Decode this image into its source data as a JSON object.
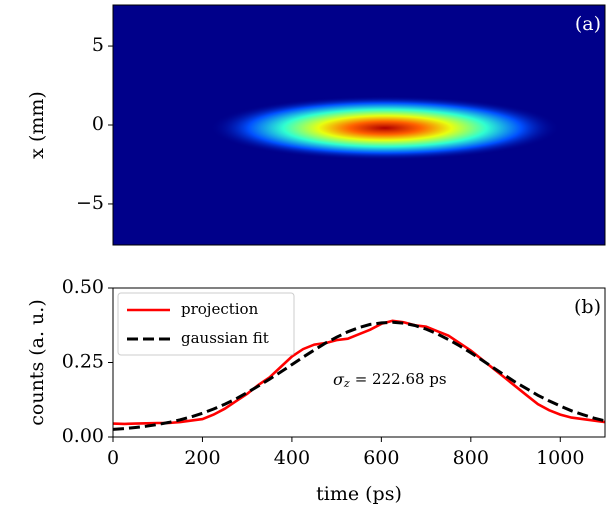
{
  "chart_data": [
    {
      "type": "heatmap",
      "ylabel": "x (mm)",
      "ylim": [
        -7.6,
        7.6
      ],
      "yticks": [
        {
          "value": -5,
          "label": "−5"
        },
        0,
        5
      ],
      "annotation": "(a)"
    },
    {
      "type": "line",
      "xlabel": "time (ps)",
      "ylabel": "counts (a. u.)",
      "xlim": [
        0,
        1100
      ],
      "ylim": [
        0,
        0.5
      ],
      "xticks": [
        0,
        200,
        400,
        600,
        800,
        1000
      ],
      "yticks": [
        {
          "value": 0,
          "label": "0.00"
        },
        {
          "value": 0.25,
          "label": "0.25"
        },
        {
          "value": 0.5,
          "label": "0.50"
        }
      ],
      "annotation": "(b)",
      "sigma": {
        "symbol": "σ",
        "subscript": "z",
        "text": "= 222.68 ps"
      },
      "legend": "upper left",
      "x": [
        0,
        25,
        50,
        75,
        100,
        125,
        150,
        175,
        200,
        225,
        250,
        275,
        300,
        325,
        350,
        375,
        400,
        425,
        450,
        475,
        500,
        525,
        550,
        575,
        600,
        625,
        650,
        675,
        700,
        725,
        750,
        775,
        800,
        825,
        850,
        875,
        900,
        925,
        950,
        975,
        1000,
        1025,
        1050,
        1075,
        1100
      ],
      "series": [
        {
          "name": "projection",
          "color": "#ff0000",
          "dash": false,
          "values": [
            0.045,
            0.044,
            0.045,
            0.046,
            0.047,
            0.047,
            0.05,
            0.055,
            0.06,
            0.075,
            0.095,
            0.12,
            0.145,
            0.175,
            0.2,
            0.235,
            0.27,
            0.295,
            0.31,
            0.315,
            0.325,
            0.33,
            0.345,
            0.36,
            0.38,
            0.39,
            0.385,
            0.375,
            0.37,
            0.355,
            0.34,
            0.315,
            0.29,
            0.26,
            0.23,
            0.2,
            0.17,
            0.14,
            0.11,
            0.09,
            0.075,
            0.065,
            0.06,
            0.055,
            0.05
          ]
        },
        {
          "name": "gaussian fit",
          "color": "#000000",
          "dash": true,
          "values": [
            0.0256,
            0.0283,
            0.0319,
            0.0364,
            0.042,
            0.049,
            0.0576,
            0.0678,
            0.08,
            0.094,
            0.11,
            0.128,
            0.149,
            0.171,
            0.194,
            0.218,
            0.243,
            0.268,
            0.292,
            0.315,
            0.335,
            0.353,
            0.367,
            0.378,
            0.383,
            0.385,
            0.382,
            0.374,
            0.362,
            0.346,
            0.327,
            0.306,
            0.283,
            0.258,
            0.233,
            0.208,
            0.184,
            0.162,
            0.14,
            0.121,
            0.104,
            0.088,
            0.075,
            0.0635,
            0.054
          ]
        }
      ]
    }
  ]
}
